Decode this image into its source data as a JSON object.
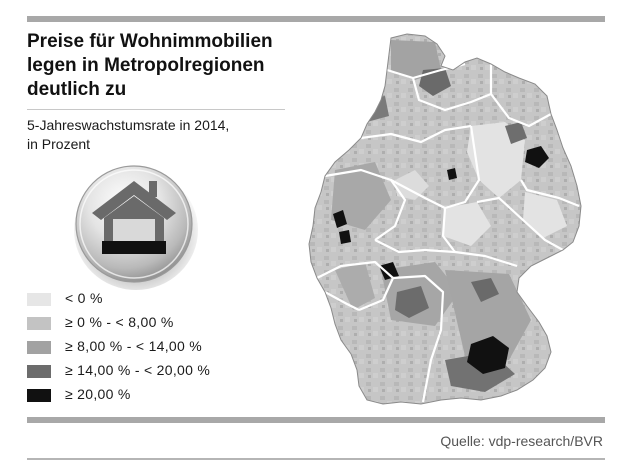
{
  "header": {
    "title_lines": [
      "Preise für Wohnimmobilien",
      "legen in Metropolregionen",
      "deutlich zu"
    ],
    "subtitle_lines": [
      "5-Jahreswachstumsrate in 2014,",
      "in Prozent"
    ]
  },
  "icon": "house-icon",
  "legend": {
    "items": [
      {
        "label": "<  0 %",
        "color": "#e6e6e6"
      },
      {
        "label": "≥  0 % - < 8,00 %",
        "color": "#c3c3c3"
      },
      {
        "label": "≥  8,00 % - < 14,00 %",
        "color": "#a2a2a2"
      },
      {
        "label": "≥  14,00 % - < 20,00 %",
        "color": "#6c6c6c"
      },
      {
        "label": "≥  20,00 %",
        "color": "#111111"
      }
    ]
  },
  "map": {
    "hotspots": [
      {
        "name": "berlin",
        "class": 4
      },
      {
        "name": "muenchen",
        "class": 4
      },
      {
        "name": "hamburg",
        "class": 3
      },
      {
        "name": "frankfurt",
        "class": 4
      },
      {
        "name": "duesseldorf-koeln",
        "class": 4
      },
      {
        "name": "stuttgart",
        "class": 3
      },
      {
        "name": "nuernberg",
        "class": 3
      }
    ]
  },
  "footer": {
    "source": "Quelle: vdp-research/BVR"
  }
}
